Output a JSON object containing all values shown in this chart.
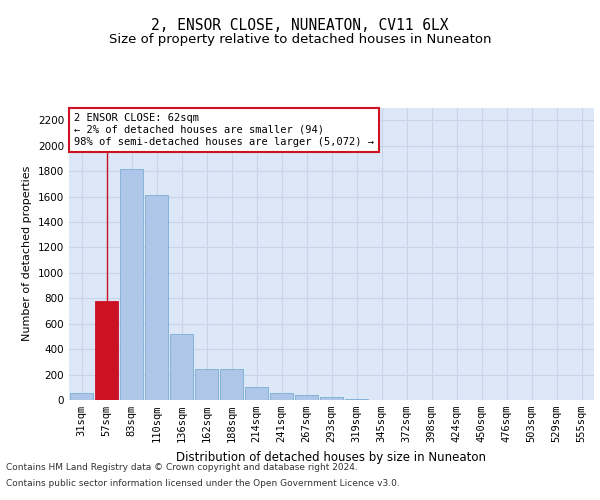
{
  "title": "2, ENSOR CLOSE, NUNEATON, CV11 6LX",
  "subtitle": "Size of property relative to detached houses in Nuneaton",
  "xlabel": "Distribution of detached houses by size in Nuneaton",
  "ylabel": "Number of detached properties",
  "categories": [
    "31sqm",
    "57sqm",
    "83sqm",
    "110sqm",
    "136sqm",
    "162sqm",
    "188sqm",
    "214sqm",
    "241sqm",
    "267sqm",
    "293sqm",
    "319sqm",
    "345sqm",
    "372sqm",
    "398sqm",
    "424sqm",
    "450sqm",
    "476sqm",
    "503sqm",
    "529sqm",
    "555sqm"
  ],
  "values": [
    55,
    780,
    1820,
    1610,
    520,
    240,
    240,
    105,
    55,
    40,
    20,
    5,
    2,
    1,
    1,
    0,
    0,
    0,
    0,
    0,
    0
  ],
  "bar_color": "#aec6e8",
  "bar_edge_color": "#7aadd4",
  "highlight_bar_index": 1,
  "highlight_bar_color": "#cc1122",
  "annotation_text": "2 ENSOR CLOSE: 62sqm\n← 2% of detached houses are smaller (94)\n98% of semi-detached houses are larger (5,072) →",
  "annotation_box_facecolor": "#ffffff",
  "annotation_box_edgecolor": "#cc1122",
  "ylim": [
    0,
    2300
  ],
  "yticks": [
    0,
    200,
    400,
    600,
    800,
    1000,
    1200,
    1400,
    1600,
    1800,
    2000,
    2200
  ],
  "grid_color": "#c8d4e8",
  "background_color": "#dce8f8",
  "footer_line1": "Contains HM Land Registry data © Crown copyright and database right 2024.",
  "footer_line2": "Contains public sector information licensed under the Open Government Licence v3.0.",
  "title_fontsize": 10.5,
  "subtitle_fontsize": 9.5,
  "xlabel_fontsize": 8.5,
  "ylabel_fontsize": 8,
  "tick_fontsize": 7.5,
  "annotation_fontsize": 7.5,
  "footer_fontsize": 6.5
}
